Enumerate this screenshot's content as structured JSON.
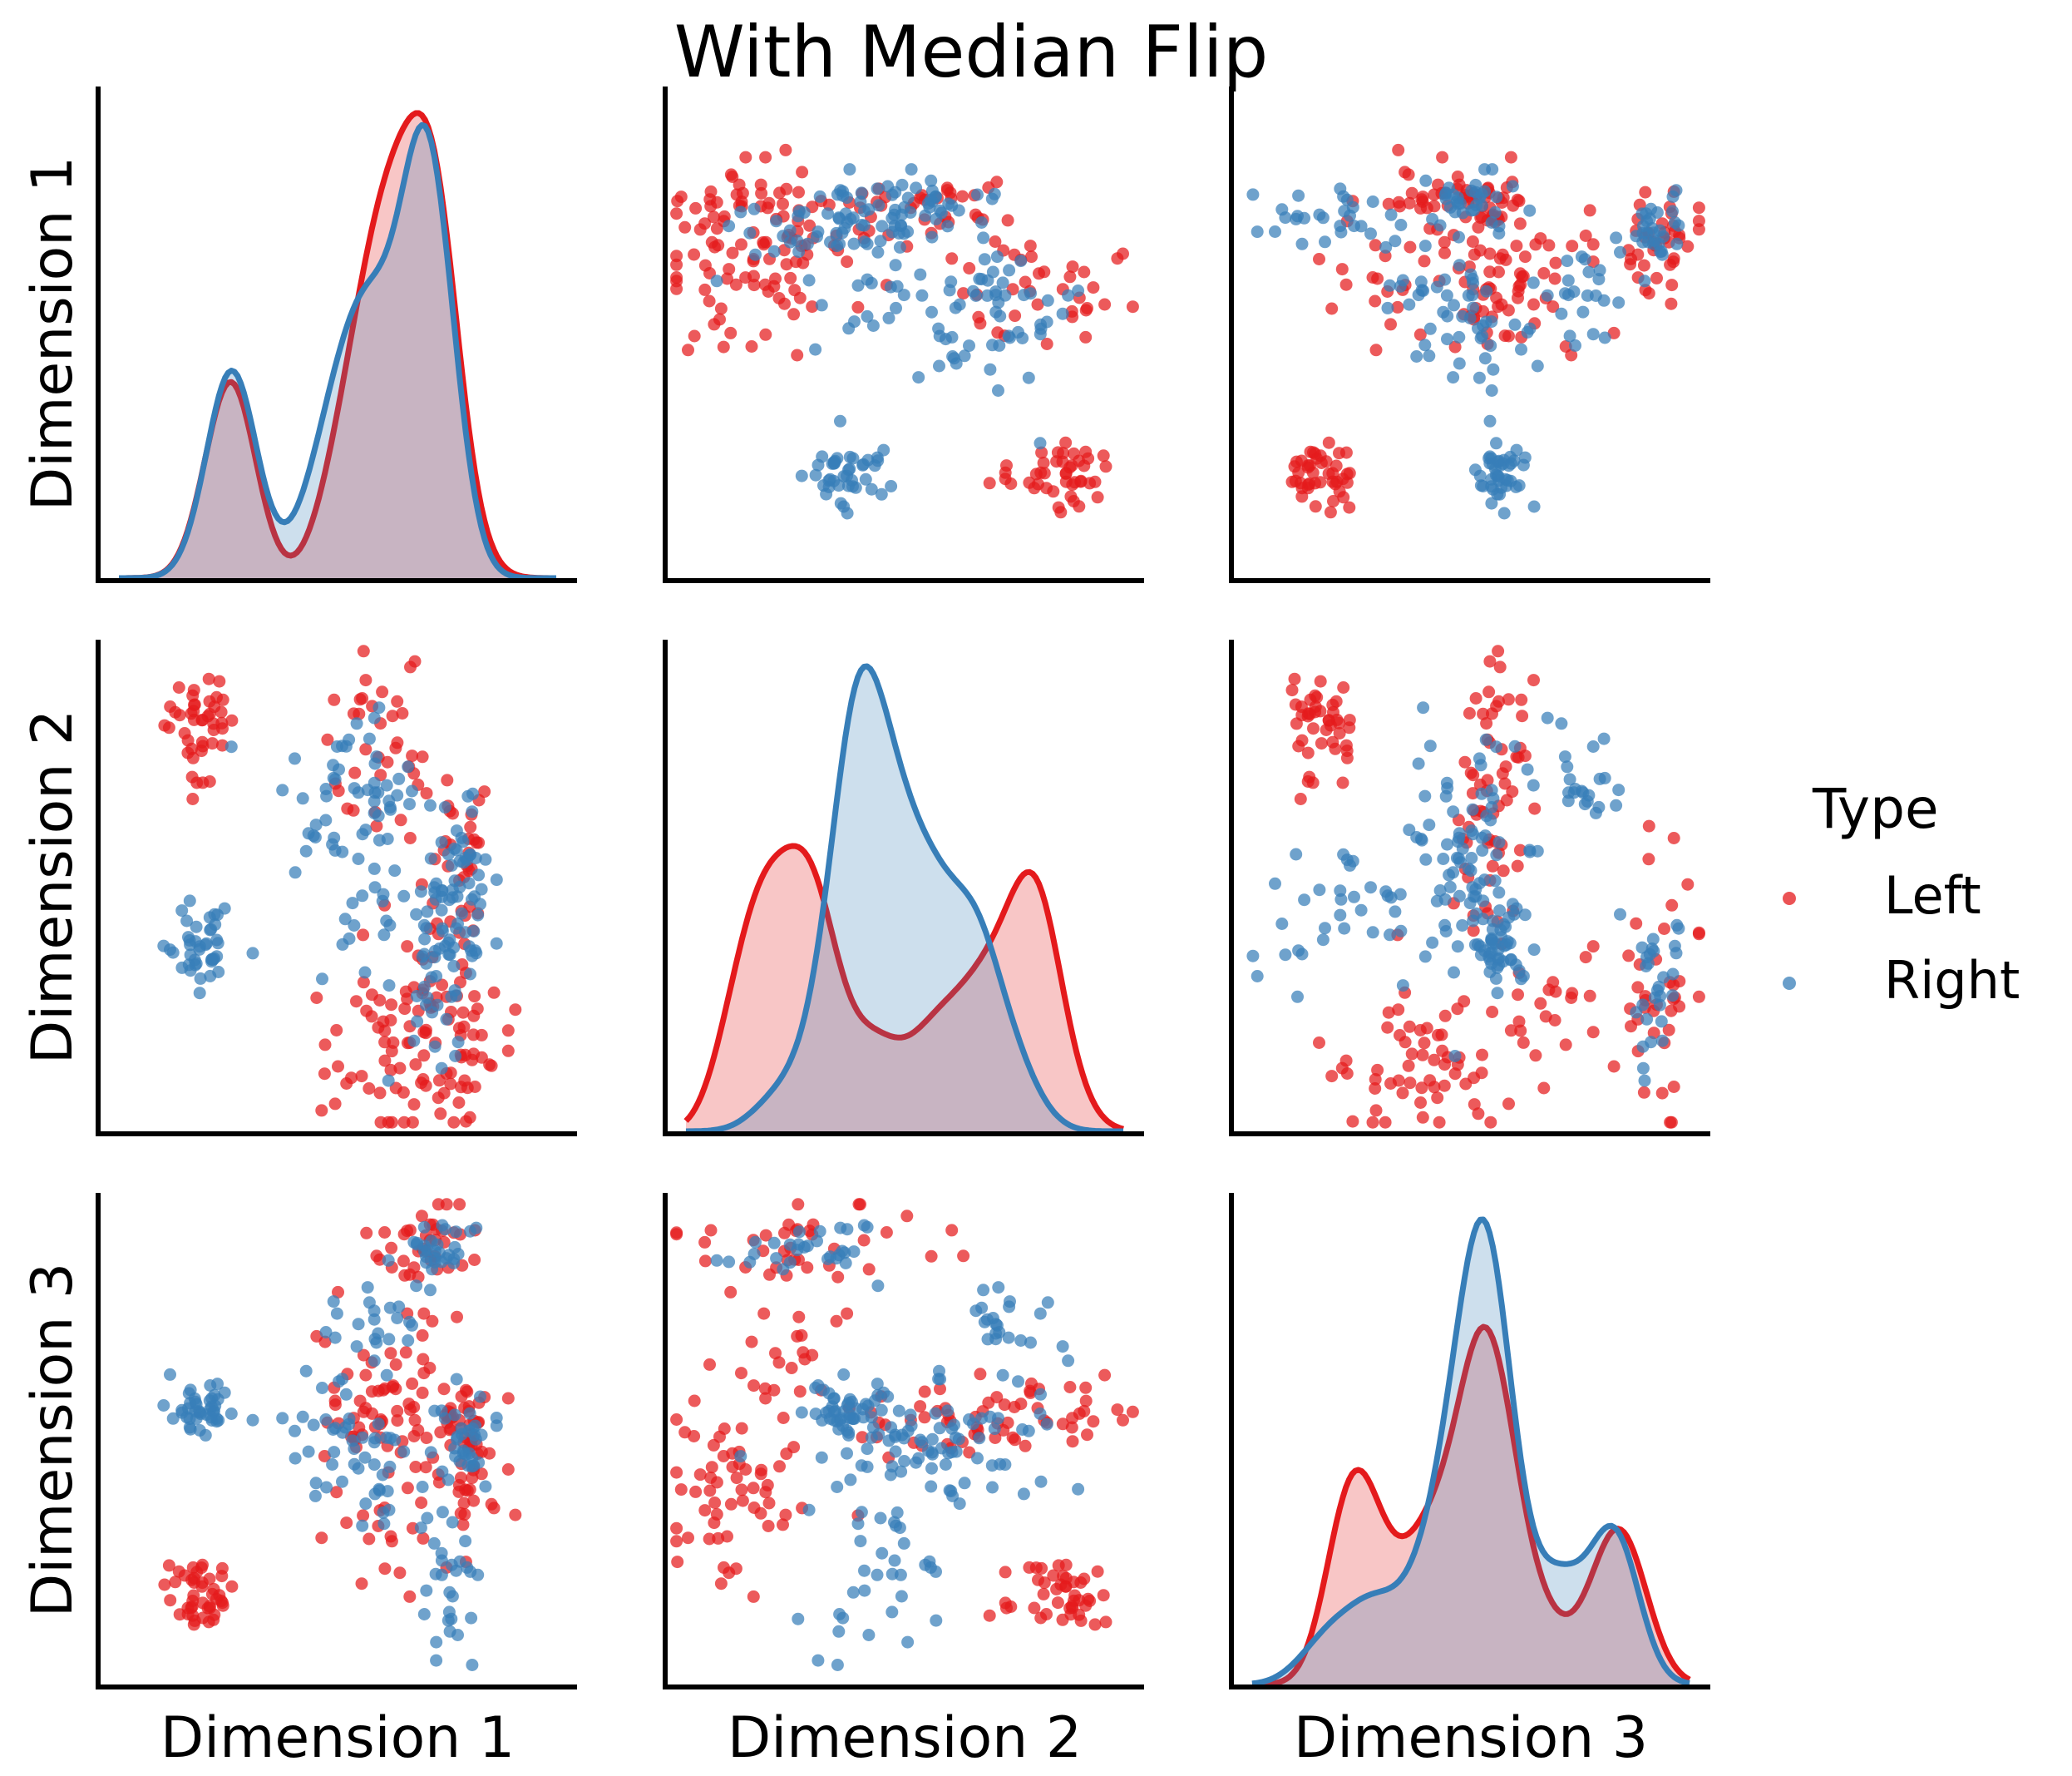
{
  "chart_data": {
    "type": "scatter",
    "title": "With Median Flip",
    "variables": [
      "Dimension 1",
      "Dimension 2",
      "Dimension 3"
    ],
    "diagonal_type": "kde",
    "legend": {
      "title": "Type",
      "position": "right",
      "entries": [
        {
          "name": "Left",
          "color": "#e41a1c"
        },
        {
          "name": "Right",
          "color": "#377eb8"
        }
      ]
    },
    "ticks_shown": false,
    "grid": false,
    "panel_range": [
      0,
      100
    ],
    "clusters": {
      "left": [
        {
          "n": 44,
          "c": [
            20,
            84,
            18
          ],
          "sd": [
            3,
            5,
            3
          ],
          "spread": 1.2
        },
        {
          "n": 36,
          "c": [
            60,
            78,
            55
          ],
          "sd": [
            7,
            10,
            4
          ],
          "spread": 1.0
        },
        {
          "n": 30,
          "c": [
            77,
            55,
            55
          ],
          "sd": [
            3,
            10,
            5
          ],
          "spread": 1.0
        },
        {
          "n": 36,
          "c": [
            70,
            28,
            90
          ],
          "sd": [
            5,
            14,
            4
          ],
          "spread": 1.1
        },
        {
          "n": 30,
          "c": [
            80,
            14,
            42
          ],
          "sd": [
            4,
            6,
            6
          ],
          "spread": 1.0
        },
        {
          "n": 26,
          "c": [
            62,
            10,
            35
          ],
          "sd": [
            7,
            8,
            12
          ],
          "spread": 1.0
        },
        {
          "n": 26,
          "c": [
            60,
            22,
            65
          ],
          "sd": [
            8,
            8,
            12
          ],
          "spread": 1.0
        }
      ],
      "right": [
        {
          "n": 42,
          "c": [
            20,
            38,
            56
          ],
          "sd": [
            3,
            4,
            3
          ],
          "spread": 1.2
        },
        {
          "n": 30,
          "c": [
            70,
            30,
            90
          ],
          "sd": [
            4,
            8,
            3
          ],
          "spread": 1.0
        },
        {
          "n": 26,
          "c": [
            50,
            70,
            52
          ],
          "sd": [
            8,
            9,
            8
          ],
          "spread": 1.0
        },
        {
          "n": 34,
          "c": [
            77,
            55,
            50
          ],
          "sd": [
            3,
            10,
            4
          ],
          "spread": 1.0
        },
        {
          "n": 30,
          "c": [
            72,
            45,
            20
          ],
          "sd": [
            4,
            8,
            10
          ],
          "spread": 1.0
        },
        {
          "n": 22,
          "c": [
            60,
            70,
            72
          ],
          "sd": [
            6,
            8,
            6
          ],
          "spread": 1.0
        },
        {
          "n": 26,
          "c": [
            58,
            50,
            45
          ],
          "sd": [
            8,
            12,
            10
          ],
          "spread": 1.0
        }
      ]
    }
  }
}
